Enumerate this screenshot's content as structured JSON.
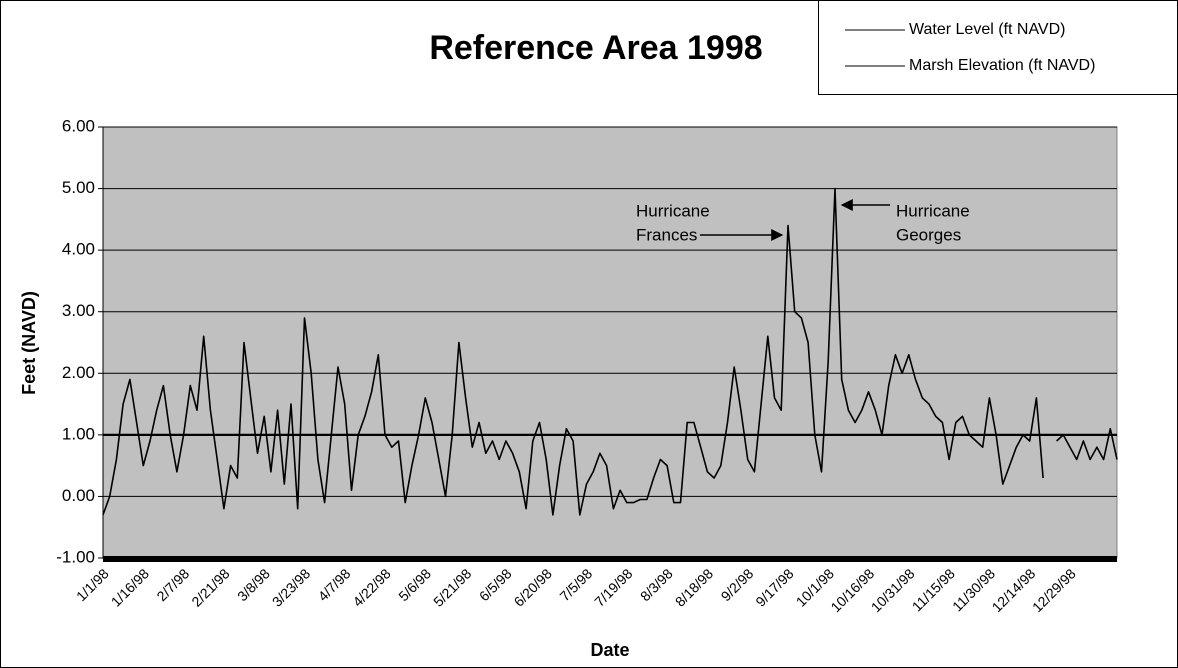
{
  "chart_data": {
    "type": "line",
    "title": "Reference Area 1998",
    "y_label": "Feet (NAVD)",
    "x_label": "Date",
    "categories": [
      "1/1/98",
      null,
      null,
      null,
      null,
      null,
      "1/16/98",
      null,
      null,
      null,
      null,
      null,
      "2/7/98",
      null,
      null,
      null,
      null,
      null,
      "2/21/98",
      null,
      null,
      null,
      null,
      null,
      "3/8/98",
      null,
      null,
      null,
      null,
      null,
      "3/23/98",
      null,
      null,
      null,
      null,
      null,
      "4/7/98",
      null,
      null,
      null,
      null,
      null,
      "4/22/98",
      null,
      null,
      null,
      null,
      null,
      "5/6/98",
      null,
      null,
      null,
      null,
      null,
      "5/21/98",
      null,
      null,
      null,
      null,
      null,
      "6/5/98",
      null,
      null,
      null,
      null,
      null,
      "6/20/98",
      null,
      null,
      null,
      null,
      null,
      "7/5/98",
      null,
      null,
      null,
      null,
      null,
      "7/19/98",
      null,
      null,
      null,
      null,
      null,
      "8/3/98",
      null,
      null,
      null,
      null,
      null,
      "8/18/98",
      null,
      null,
      null,
      null,
      null,
      "9/2/98",
      null,
      null,
      null,
      null,
      null,
      "9/17/98",
      null,
      null,
      null,
      null,
      null,
      "10/1/98",
      null,
      null,
      null,
      null,
      null,
      "10/16/98",
      null,
      null,
      null,
      null,
      null,
      "10/31/98",
      null,
      null,
      null,
      null,
      null,
      "11/15/98",
      null,
      null,
      null,
      null,
      null,
      "11/30/98",
      null,
      null,
      null,
      null,
      null,
      "12/14/98",
      null,
      null,
      null,
      null,
      null,
      "12/29/98",
      null,
      null,
      null,
      null,
      null,
      null,
      null
    ],
    "series": [
      {
        "name": "Water Level (ft NAVD)",
        "color": "#000000",
        "values": [
          -0.3,
          0.0,
          0.6,
          1.5,
          1.9,
          1.2,
          0.5,
          0.9,
          1.4,
          1.8,
          1.0,
          0.4,
          1.0,
          1.8,
          1.4,
          2.6,
          1.4,
          0.6,
          -0.2,
          0.5,
          0.3,
          2.5,
          1.6,
          0.7,
          1.3,
          0.4,
          1.4,
          0.2,
          1.5,
          -0.2,
          2.9,
          2.0,
          0.6,
          -0.1,
          1.0,
          2.1,
          1.5,
          0.1,
          1.0,
          1.3,
          1.7,
          2.3,
          1.0,
          0.8,
          0.9,
          -0.1,
          0.5,
          1.0,
          1.6,
          1.2,
          0.6,
          0.0,
          1.0,
          2.5,
          1.6,
          0.8,
          1.2,
          0.7,
          0.9,
          0.6,
          0.9,
          0.7,
          0.4,
          -0.2,
          0.9,
          1.2,
          0.6,
          -0.3,
          0.5,
          1.1,
          0.9,
          -0.3,
          0.2,
          0.4,
          0.7,
          0.5,
          -0.2,
          0.1,
          -0.1,
          -0.1,
          -0.05,
          -0.05,
          0.3,
          0.6,
          0.5,
          -0.1,
          -0.1,
          1.2,
          1.2,
          0.8,
          0.4,
          0.3,
          0.5,
          1.2,
          2.1,
          1.4,
          0.6,
          0.4,
          1.5,
          2.6,
          1.6,
          1.4,
          4.4,
          3.0,
          2.9,
          2.5,
          1.0,
          0.4,
          2.2,
          5.0,
          1.9,
          1.4,
          1.2,
          1.4,
          1.7,
          1.4,
          1.0,
          1.8,
          2.3,
          2.0,
          2.3,
          1.9,
          1.6,
          1.5,
          1.3,
          1.2,
          0.6,
          1.2,
          1.3,
          1.0,
          0.9,
          0.8,
          1.6,
          1.0,
          0.2,
          0.5,
          0.8,
          1.0,
          0.9,
          1.6,
          0.3,
          null,
          0.9,
          1.0,
          0.8,
          0.6,
          0.9,
          0.6,
          0.8,
          0.6,
          1.1,
          0.6
        ]
      },
      {
        "name": "Marsh Elevation (ft NAVD)",
        "color": "#000000",
        "values": [
          1,
          1,
          1,
          1,
          1,
          1,
          1,
          1,
          1,
          1,
          1,
          1,
          1,
          1,
          1,
          1,
          1,
          1,
          1,
          1,
          1,
          1,
          1,
          1,
          1,
          1,
          1,
          1,
          1,
          1,
          1,
          1,
          1,
          1,
          1,
          1,
          1,
          1,
          1,
          1,
          1,
          1,
          1,
          1,
          1,
          1,
          1,
          1,
          1,
          1,
          1,
          1,
          1,
          1,
          1,
          1,
          1,
          1,
          1,
          1,
          1,
          1,
          1,
          1,
          1,
          1,
          1,
          1,
          1,
          1,
          1,
          1,
          1,
          1,
          1,
          1,
          1,
          1,
          1,
          1,
          1,
          1,
          1,
          1,
          1,
          1,
          1,
          1,
          1,
          1,
          1,
          1,
          1,
          1,
          1,
          1,
          1,
          1,
          1,
          1,
          1,
          1,
          1,
          1,
          1,
          1,
          1,
          1,
          1,
          1,
          1,
          1,
          1,
          1,
          1,
          1,
          1,
          1,
          1,
          1,
          1,
          1,
          1,
          1,
          1,
          1,
          1,
          1,
          1,
          1,
          1,
          1,
          1,
          1,
          1,
          1,
          1,
          1,
          1,
          1,
          1,
          1,
          1,
          1,
          1,
          1,
          1,
          1,
          1,
          1,
          1,
          1
        ]
      }
    ],
    "ylim": [
      -1,
      6
    ],
    "yticks": [
      {
        "value": -1,
        "label": "-1.00"
      },
      {
        "value": 0,
        "label": "0.00"
      },
      {
        "value": 1,
        "label": "1.00"
      },
      {
        "value": 2,
        "label": "2.00"
      },
      {
        "value": 3,
        "label": "3.00"
      },
      {
        "value": 4,
        "label": "4.00"
      },
      {
        "value": 5,
        "label": "5.00"
      },
      {
        "value": 6,
        "label": "6.00"
      }
    ],
    "grid": true,
    "plot_background": "#c0c0c0",
    "legend_position": "top-right",
    "annotations": [
      {
        "text": [
          "Hurricane",
          "Frances"
        ]
      },
      {
        "text": [
          "Hurricane",
          "Georges"
        ]
      }
    ]
  }
}
